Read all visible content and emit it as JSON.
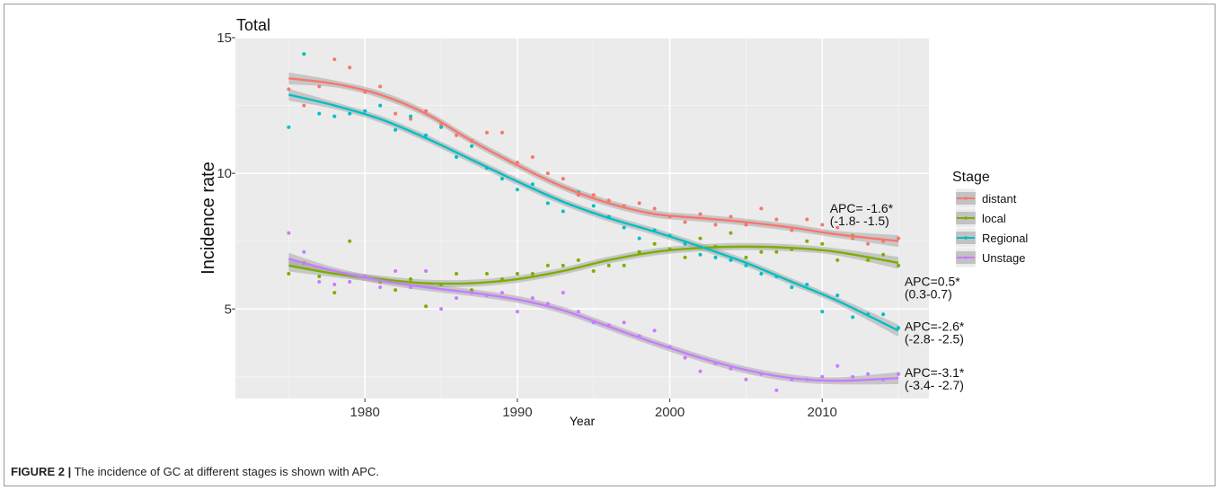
{
  "chart_data": {
    "type": "scatter",
    "title": "Total",
    "xlabel": "Year",
    "ylabel": "Incidence rate",
    "xlim": [
      1971.5,
      2017
    ],
    "ylim": [
      1.7,
      15
    ],
    "xticks": [
      1980,
      1990,
      2000,
      2010
    ],
    "yticks": [
      5,
      10,
      15
    ],
    "grid": true,
    "legend": {
      "title": "Stage",
      "placement": "right",
      "entries": [
        "distant",
        "local",
        "Regional",
        "Unstage"
      ]
    },
    "series": [
      {
        "name": "distant",
        "color": "#F8766D",
        "fit": [
          [
            1975,
            13.5
          ],
          [
            1978,
            13.3
          ],
          [
            1981,
            12.9
          ],
          [
            1984,
            12.2
          ],
          [
            1987,
            11.2
          ],
          [
            1990,
            10.3
          ],
          [
            1993,
            9.5
          ],
          [
            1996,
            8.9
          ],
          [
            1999,
            8.5
          ],
          [
            2002,
            8.35
          ],
          [
            2005,
            8.2
          ],
          [
            2008,
            8.0
          ],
          [
            2011,
            7.75
          ],
          [
            2015,
            7.5
          ]
        ],
        "points": [
          [
            1975,
            13.1
          ],
          [
            1976,
            12.5
          ],
          [
            1977,
            13.2
          ],
          [
            1978,
            14.2
          ],
          [
            1979,
            13.9
          ],
          [
            1980,
            13.0
          ],
          [
            1981,
            13.2
          ],
          [
            1982,
            12.2
          ],
          [
            1983,
            12.0
          ],
          [
            1984,
            12.3
          ],
          [
            1985,
            11.8
          ],
          [
            1986,
            11.4
          ],
          [
            1987,
            11.2
          ],
          [
            1988,
            11.5
          ],
          [
            1989,
            11.5
          ],
          [
            1990,
            10.4
          ],
          [
            1991,
            10.6
          ],
          [
            1992,
            10.0
          ],
          [
            1993,
            9.8
          ],
          [
            1994,
            9.2
          ],
          [
            1995,
            9.2
          ],
          [
            1996,
            9.0
          ],
          [
            1997,
            8.8
          ],
          [
            1998,
            8.9
          ],
          [
            1999,
            8.7
          ],
          [
            2000,
            8.4
          ],
          [
            2001,
            8.2
          ],
          [
            2002,
            8.5
          ],
          [
            2003,
            8.1
          ],
          [
            2004,
            8.4
          ],
          [
            2005,
            8.1
          ],
          [
            2006,
            8.7
          ],
          [
            2007,
            8.3
          ],
          [
            2008,
            7.9
          ],
          [
            2009,
            8.3
          ],
          [
            2010,
            8.1
          ],
          [
            2011,
            8.0
          ],
          [
            2012,
            7.6
          ],
          [
            2013,
            7.4
          ],
          [
            2014,
            7.5
          ],
          [
            2015,
            7.6
          ]
        ]
      },
      {
        "name": "local",
        "color": "#7CAE00",
        "fit": [
          [
            1975,
            6.6
          ],
          [
            1978,
            6.3
          ],
          [
            1981,
            6.1
          ],
          [
            1984,
            5.95
          ],
          [
            1987,
            5.95
          ],
          [
            1990,
            6.1
          ],
          [
            1993,
            6.4
          ],
          [
            1996,
            6.8
          ],
          [
            1999,
            7.1
          ],
          [
            2002,
            7.25
          ],
          [
            2005,
            7.3
          ],
          [
            2008,
            7.25
          ],
          [
            2011,
            7.1
          ],
          [
            2015,
            6.7
          ]
        ],
        "points": [
          [
            1975,
            6.3
          ],
          [
            1976,
            6.7
          ],
          [
            1977,
            6.2
          ],
          [
            1978,
            5.6
          ],
          [
            1979,
            7.5
          ],
          [
            1980,
            6.2
          ],
          [
            1981,
            6.0
          ],
          [
            1982,
            5.7
          ],
          [
            1983,
            6.1
          ],
          [
            1984,
            5.1
          ],
          [
            1985,
            5.9
          ],
          [
            1986,
            6.3
          ],
          [
            1987,
            5.7
          ],
          [
            1988,
            6.3
          ],
          [
            1989,
            6.1
          ],
          [
            1990,
            6.3
          ],
          [
            1991,
            6.3
          ],
          [
            1992,
            6.6
          ],
          [
            1993,
            6.6
          ],
          [
            1994,
            6.8
          ],
          [
            1995,
            6.4
          ],
          [
            1996,
            6.6
          ],
          [
            1997,
            6.6
          ],
          [
            1998,
            7.1
          ],
          [
            1999,
            7.4
          ],
          [
            2000,
            7.2
          ],
          [
            2001,
            6.9
          ],
          [
            2002,
            7.6
          ],
          [
            2003,
            7.3
          ],
          [
            2004,
            7.8
          ],
          [
            2005,
            6.9
          ],
          [
            2006,
            7.1
          ],
          [
            2007,
            7.1
          ],
          [
            2008,
            7.2
          ],
          [
            2009,
            7.5
          ],
          [
            2010,
            7.4
          ],
          [
            2011,
            6.8
          ],
          [
            2012,
            7.7
          ],
          [
            2013,
            6.8
          ],
          [
            2014,
            7.0
          ],
          [
            2015,
            6.6
          ]
        ]
      },
      {
        "name": "Regional",
        "color": "#00BFC4",
        "fit": [
          [
            1975,
            12.9
          ],
          [
            1978,
            12.5
          ],
          [
            1981,
            12.0
          ],
          [
            1984,
            11.3
          ],
          [
            1987,
            10.5
          ],
          [
            1990,
            9.7
          ],
          [
            1993,
            8.95
          ],
          [
            1996,
            8.35
          ],
          [
            1999,
            7.85
          ],
          [
            2002,
            7.3
          ],
          [
            2005,
            6.7
          ],
          [
            2008,
            6.0
          ],
          [
            2011,
            5.3
          ],
          [
            2015,
            4.2
          ]
        ],
        "points": [
          [
            1975,
            11.7
          ],
          [
            1976,
            14.4
          ],
          [
            1977,
            12.2
          ],
          [
            1978,
            12.1
          ],
          [
            1979,
            12.2
          ],
          [
            1980,
            12.3
          ],
          [
            1981,
            12.5
          ],
          [
            1982,
            11.6
          ],
          [
            1983,
            12.1
          ],
          [
            1984,
            11.4
          ],
          [
            1985,
            11.7
          ],
          [
            1986,
            10.6
          ],
          [
            1987,
            11.0
          ],
          [
            1988,
            10.2
          ],
          [
            1989,
            9.8
          ],
          [
            1990,
            9.4
          ],
          [
            1991,
            9.6
          ],
          [
            1992,
            8.9
          ],
          [
            1993,
            8.6
          ],
          [
            1994,
            9.3
          ],
          [
            1995,
            8.8
          ],
          [
            1996,
            8.4
          ],
          [
            1997,
            8.0
          ],
          [
            1998,
            7.6
          ],
          [
            1999,
            7.9
          ],
          [
            2000,
            7.7
          ],
          [
            2001,
            7.4
          ],
          [
            2002,
            7.0
          ],
          [
            2003,
            6.9
          ],
          [
            2004,
            6.8
          ],
          [
            2005,
            6.6
          ],
          [
            2006,
            6.3
          ],
          [
            2007,
            6.2
          ],
          [
            2008,
            5.8
          ],
          [
            2009,
            5.9
          ],
          [
            2010,
            4.9
          ],
          [
            2011,
            5.5
          ],
          [
            2012,
            4.7
          ],
          [
            2013,
            4.8
          ],
          [
            2014,
            4.8
          ],
          [
            2015,
            4.3
          ]
        ]
      },
      {
        "name": "Unstage",
        "color": "#C77CFF",
        "fit": [
          [
            1975,
            6.85
          ],
          [
            1978,
            6.4
          ],
          [
            1981,
            6.05
          ],
          [
            1984,
            5.8
          ],
          [
            1987,
            5.6
          ],
          [
            1990,
            5.35
          ],
          [
            1993,
            4.95
          ],
          [
            1996,
            4.35
          ],
          [
            1999,
            3.75
          ],
          [
            2002,
            3.2
          ],
          [
            2005,
            2.75
          ],
          [
            2008,
            2.45
          ],
          [
            2011,
            2.35
          ],
          [
            2015,
            2.45
          ]
        ],
        "points": [
          [
            1975,
            7.8
          ],
          [
            1976,
            7.1
          ],
          [
            1977,
            6.0
          ],
          [
            1978,
            5.9
          ],
          [
            1979,
            6.0
          ],
          [
            1980,
            6.2
          ],
          [
            1981,
            5.8
          ],
          [
            1982,
            6.4
          ],
          [
            1983,
            5.8
          ],
          [
            1984,
            6.4
          ],
          [
            1985,
            5.0
          ],
          [
            1986,
            5.4
          ],
          [
            1987,
            5.6
          ],
          [
            1988,
            5.5
          ],
          [
            1989,
            5.6
          ],
          [
            1990,
            4.9
          ],
          [
            1991,
            5.4
          ],
          [
            1992,
            5.2
          ],
          [
            1993,
            5.6
          ],
          [
            1994,
            4.9
          ],
          [
            1995,
            4.5
          ],
          [
            1996,
            4.4
          ],
          [
            1997,
            4.5
          ],
          [
            1998,
            4.0
          ],
          [
            1999,
            4.2
          ],
          [
            2000,
            3.6
          ],
          [
            2001,
            3.2
          ],
          [
            2002,
            2.7
          ],
          [
            2003,
            3.0
          ],
          [
            2004,
            2.8
          ],
          [
            2005,
            2.4
          ],
          [
            2006,
            2.6
          ],
          [
            2007,
            2.0
          ],
          [
            2008,
            2.4
          ],
          [
            2009,
            2.4
          ],
          [
            2010,
            2.5
          ],
          [
            2011,
            2.9
          ],
          [
            2012,
            2.5
          ],
          [
            2013,
            2.6
          ],
          [
            2014,
            2.4
          ],
          [
            2015,
            2.6
          ]
        ]
      }
    ],
    "annotations": [
      {
        "series": "distant",
        "line1": "APC= -1.6*",
        "line2": "(-1.8- -1.5)",
        "x": 2010.5,
        "y": 8.55
      },
      {
        "series": "local",
        "line1": "APC=0.5*",
        "line2": "(0.3-0.7)",
        "x": 2015.4,
        "y": 5.85
      },
      {
        "series": "Regional",
        "line1": "APC=-2.6*",
        "line2": "(-2.8- -2.5)",
        "x": 2015.4,
        "y": 4.2
      },
      {
        "series": "Unstage",
        "line1": "APC=-3.1*",
        "line2": "(-3.4- -2.7)",
        "x": 2015.4,
        "y": 2.5
      }
    ]
  },
  "caption": {
    "label": "FIGURE 2 |",
    "text": " The incidence of GC at different stages is shown with APC."
  }
}
